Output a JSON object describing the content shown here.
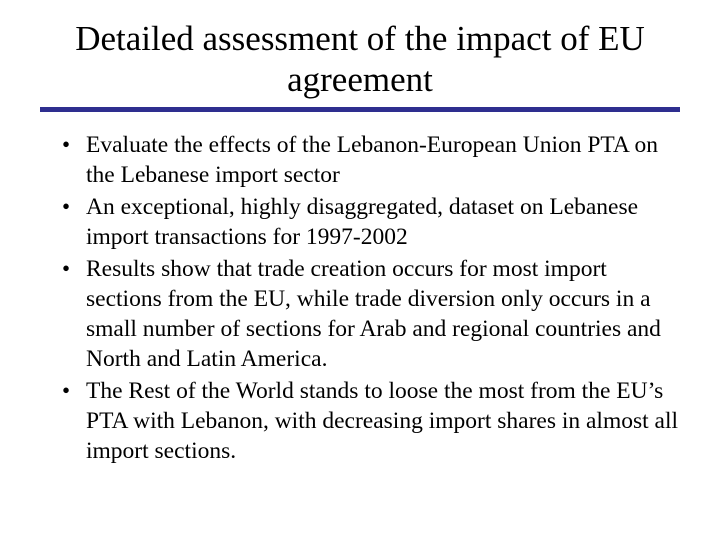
{
  "slide": {
    "title": "Detailed assessment of the impact of EU agreement",
    "underline_color": "#2e2e8f",
    "background_color": "#ffffff",
    "text_color": "#000000",
    "title_fontsize": 35,
    "body_fontsize": 23.5,
    "bullets": [
      "Evaluate the effects of the Lebanon-European Union PTA on the Lebanese import sector",
      "An exceptional, highly disaggregated, dataset on Lebanese import transactions for 1997-2002",
      "Results show that trade creation occurs for most import sections from the EU, while trade diversion only occurs in a small number of sections for Arab and regional countries and North and Latin America.",
      "The Rest of the World stands to loose the most from the EU’s PTA with Lebanon, with decreasing import shares in almost all import sections."
    ]
  }
}
